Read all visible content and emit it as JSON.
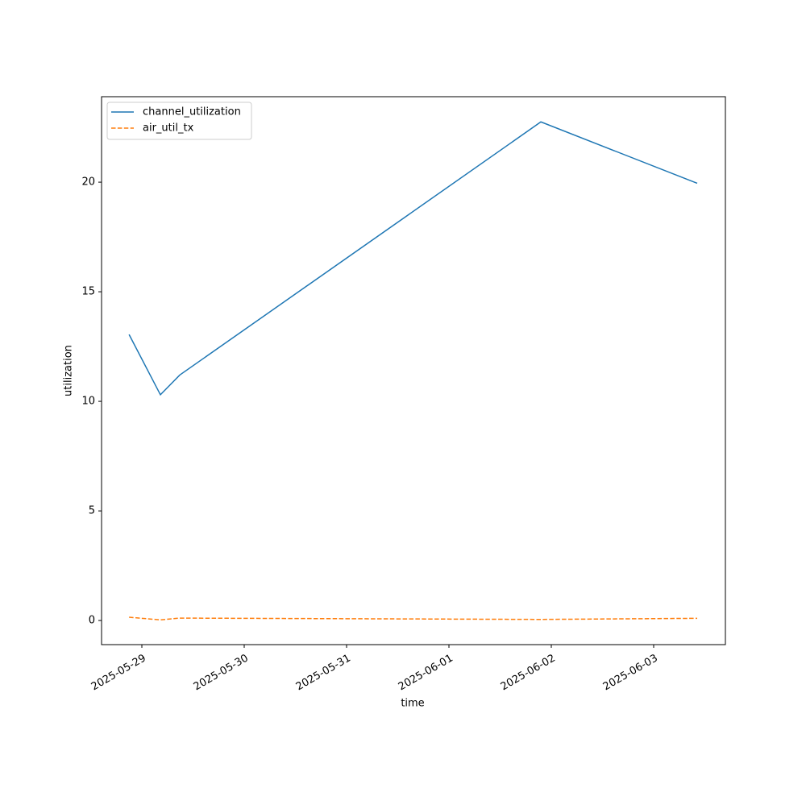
{
  "chart_data": {
    "type": "line",
    "x": [
      "2025-05-28T21:00",
      "2025-05-29T04:21",
      "2025-05-29T08:53",
      "2025-06-01T21:33",
      "2025-06-03T10:12"
    ],
    "series": [
      {
        "name": "channel_utilization",
        "color": "#1f77b4",
        "dash": false,
        "values": [
          13.05,
          10.3,
          11.2,
          22.75,
          19.95
        ]
      },
      {
        "name": "air_util_tx",
        "color": "#ff7f0e",
        "dash": true,
        "values": [
          0.15,
          0.03,
          0.11,
          0.05,
          0.1
        ]
      }
    ],
    "xlabel": "time",
    "ylabel": "utilization",
    "xlim": [
      "2025-05-28T14:33",
      "2025-06-03T16:49"
    ],
    "xticks": [
      "2025-05-29",
      "2025-05-30",
      "2025-05-31",
      "2025-06-01",
      "2025-06-02",
      "2025-06-03"
    ],
    "ylim": [
      -1.1,
      23.9
    ],
    "yticks": [
      0,
      5,
      10,
      15,
      20
    ],
    "legend": "upper left"
  }
}
